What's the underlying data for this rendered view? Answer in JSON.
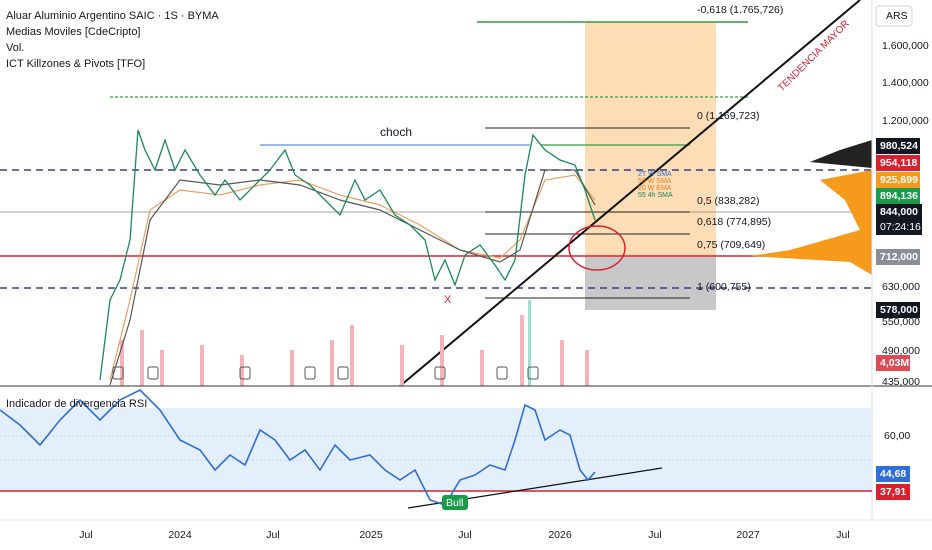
{
  "header": {
    "title": "Aluar Aluminio Argentino SAIC · 1S · BYMA",
    "indicators": [
      "Medias Moviles [CdeCripto]",
      "Vol.",
      "ICT Killzones & Pivots [TFO]"
    ]
  },
  "currency": "ARS",
  "price_axis": [
    "1.600,000",
    "1.400,000",
    "1.200,000",
    "630,000",
    "550,000",
    "490,000",
    "435,000"
  ],
  "price_tags": [
    "980,524",
    "954,118",
    "925,699",
    "894,136",
    "844,000",
    "07:24:16",
    "712,000",
    "578,000",
    "4,03M"
  ],
  "fib_levels": [
    "-0,618 (1.765,726)",
    "0 (1.169,723)",
    "0,5 (838,282)",
    "0,618 (774,895)",
    "0,75 (709,649)",
    "1 (600,755)"
  ],
  "annotations": {
    "choch": "choch",
    "trend": "TENDENCIA MAYOR",
    "low_mark": "X",
    "ma_labels": [
      "2T W SMA",
      "50 W SMA",
      "20 W EMA",
      "55 4h SMA"
    ]
  },
  "rsi": {
    "title": "Indicador de divergencia RSI",
    "axis": [
      "60,00"
    ],
    "tags": [
      "44,68",
      "37,91"
    ],
    "signal": "Bull"
  },
  "time_axis": [
    "Jul",
    "2024",
    "Jul",
    "2025",
    "Jul",
    "2026",
    "Jul",
    "2027",
    "Jul"
  ]
}
